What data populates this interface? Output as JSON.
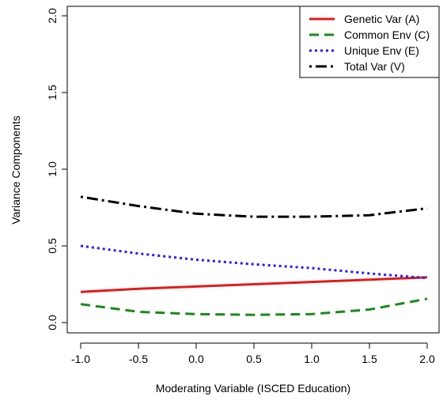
{
  "chart_data": {
    "type": "line",
    "title": "",
    "xlabel": "Moderating Variable (ISCED Education)",
    "ylabel": "Variance Components",
    "xlim": [
      -1.0,
      2.0
    ],
    "ylim": [
      0.0,
      2.0
    ],
    "xticks": [
      -1.0,
      -0.5,
      0.0,
      0.5,
      1.0,
      1.5,
      2.0
    ],
    "xtick_labels": [
      "-1.0",
      "-0.5",
      "0.0",
      "0.5",
      "1.0",
      "1.5",
      "2.0"
    ],
    "yticks": [
      0.0,
      0.5,
      1.0,
      1.5,
      2.0
    ],
    "ytick_labels": [
      "0.0",
      "0.5",
      "1.0",
      "1.5",
      "2.0"
    ],
    "grid": false,
    "legend_position": "top-right",
    "x": [
      -1.0,
      -0.5,
      0.0,
      0.5,
      1.0,
      1.5,
      2.0
    ],
    "series": [
      {
        "name": "Genetic Var (A)",
        "color": "#e41a1c",
        "dash": "solid",
        "values": [
          0.2,
          0.22,
          0.235,
          0.25,
          0.265,
          0.28,
          0.295
        ]
      },
      {
        "name": "Common Env (C)",
        "color": "#1a8a1a",
        "dash": "dashed",
        "values": [
          0.12,
          0.07,
          0.055,
          0.05,
          0.055,
          0.085,
          0.155
        ]
      },
      {
        "name": "Unique Env (E)",
        "color": "#1f1fff",
        "dash": "dotted",
        "values": [
          0.5,
          0.45,
          0.41,
          0.38,
          0.355,
          0.32,
          0.29
        ]
      },
      {
        "name": "Total Var (V)",
        "color": "#000000",
        "dash": "dotdash",
        "values": [
          0.82,
          0.76,
          0.71,
          0.69,
          0.69,
          0.7,
          0.745
        ]
      }
    ]
  }
}
